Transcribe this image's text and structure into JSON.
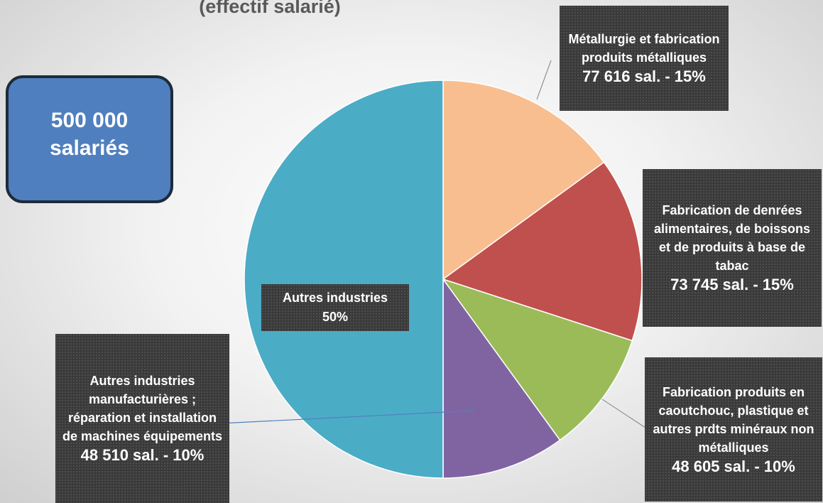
{
  "chart_data": {
    "type": "pie",
    "title": "(effectif salarié)",
    "annotation": "500 000 salariés",
    "categories": [
      "Métallurgie et fabrication produits métalliques",
      "Fabrication de denrées alimentaires, de boissons et de produits à base de tabac",
      "Fabrication produits en caoutchouc, plastique et autres prdts minéraux non métalliques",
      "Autres industries manufacturières ; réparation et installation de machines équipements",
      "Autres industries"
    ],
    "values": [
      15,
      15,
      10,
      10,
      50
    ],
    "value_labels": [
      "77 616 sal. - 15%",
      "73 745 sal. - 15%",
      "48 605 sal. - 10%",
      "48 510 sal. - 10%",
      "50%"
    ],
    "colors": [
      "#f9be8f",
      "#c0504d",
      "#9bbb59",
      "#8064a2",
      "#4bacc6"
    ]
  }
}
